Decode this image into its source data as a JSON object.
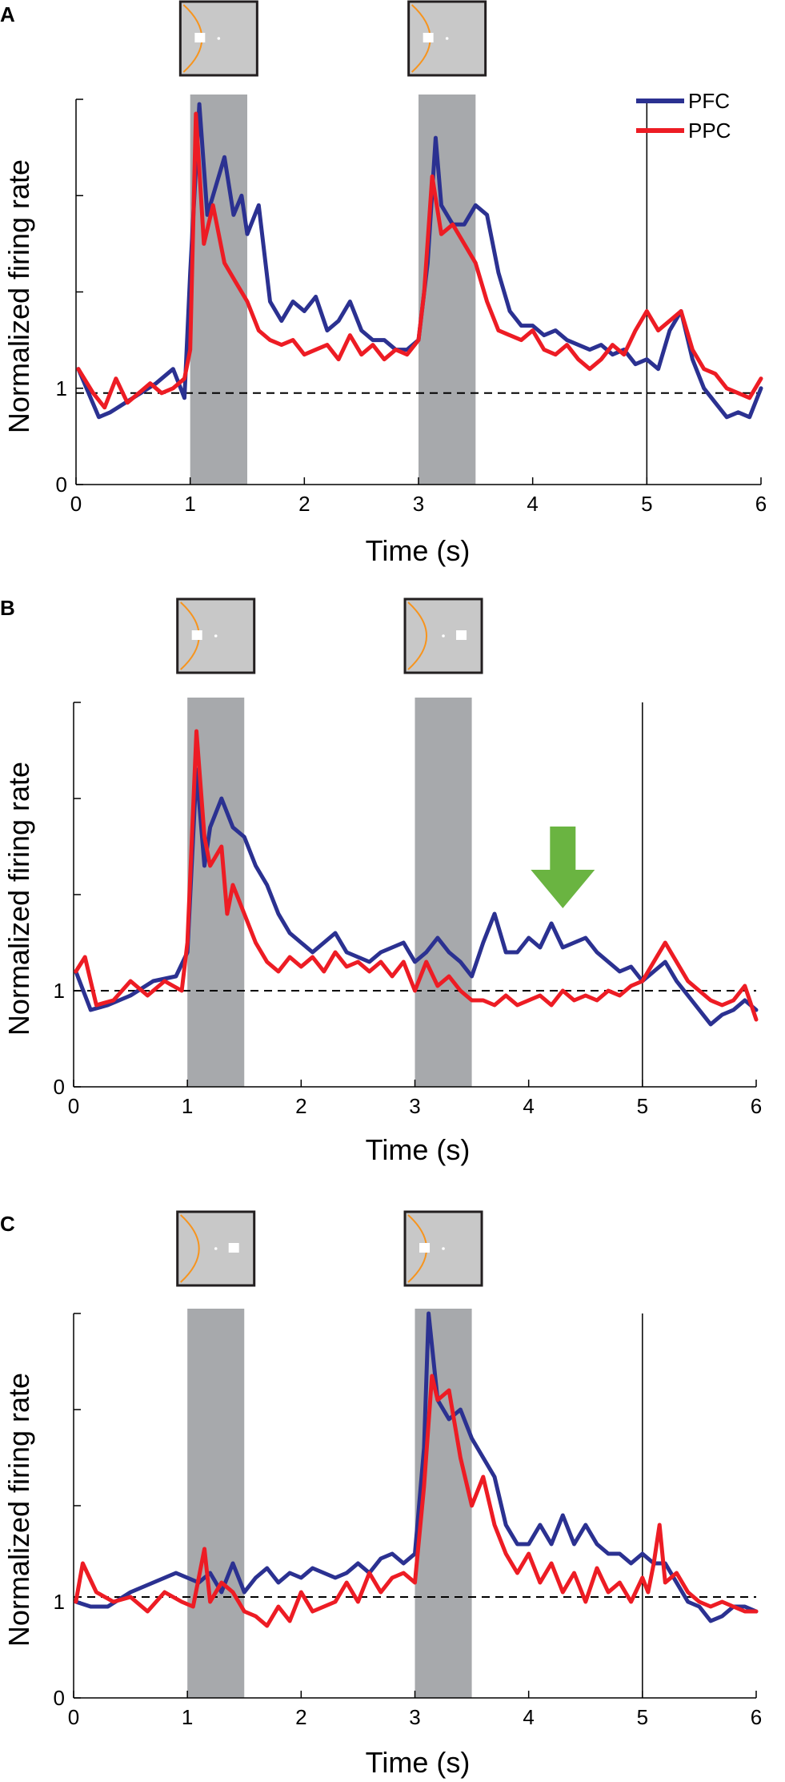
{
  "chart_data": [
    {
      "panel": "A",
      "type": "line",
      "xlabel": "Time (s)",
      "ylabel": "Normalized firing rate",
      "xlim": [
        0,
        6
      ],
      "ylim": [
        0,
        4
      ],
      "xticks": [
        "0",
        "1",
        "2",
        "3",
        "4",
        "5",
        "6"
      ],
      "yticks": [
        {
          "value": 0,
          "label": "0"
        },
        {
          "value": 1,
          "label": "1"
        },
        {
          "value": 2,
          "label": ""
        },
        {
          "value": 3,
          "label": ""
        },
        {
          "value": 4,
          "label": ""
        }
      ],
      "baseline": 0.95,
      "shaded_intervals": [
        [
          1.0,
          1.5
        ],
        [
          3.0,
          3.5
        ]
      ],
      "vertical_line": 5.0,
      "legend": {
        "position": "top-right",
        "entries": [
          "PFC",
          "PPC"
        ]
      },
      "stimulus_icons": [
        {
          "time": 1.25,
          "square_side": "left"
        },
        {
          "time": 3.25,
          "square_side": "left"
        }
      ],
      "series": [
        {
          "name": "PFC",
          "color": "#2b3191",
          "x": [
            0.02,
            0.2,
            0.3,
            0.5,
            0.7,
            0.85,
            0.95,
            1.0,
            1.08,
            1.15,
            1.2,
            1.3,
            1.38,
            1.45,
            1.5,
            1.6,
            1.7,
            1.8,
            1.9,
            2.0,
            2.1,
            2.2,
            2.3,
            2.4,
            2.5,
            2.6,
            2.7,
            2.8,
            2.9,
            3.0,
            3.08,
            3.15,
            3.2,
            3.3,
            3.4,
            3.5,
            3.6,
            3.7,
            3.8,
            3.9,
            4.0,
            4.1,
            4.2,
            4.3,
            4.4,
            4.5,
            4.6,
            4.7,
            4.8,
            4.9,
            5.0,
            5.1,
            5.2,
            5.3,
            5.4,
            5.5,
            5.6,
            5.7,
            5.8,
            5.9,
            6.0
          ],
          "y": [
            1.2,
            0.7,
            0.75,
            0.9,
            1.05,
            1.2,
            0.9,
            2.2,
            3.95,
            2.8,
            3.0,
            3.4,
            2.8,
            3.0,
            2.6,
            2.9,
            1.9,
            1.7,
            1.9,
            1.8,
            1.95,
            1.6,
            1.7,
            1.9,
            1.6,
            1.5,
            1.5,
            1.4,
            1.4,
            1.5,
            2.3,
            3.6,
            2.9,
            2.7,
            2.7,
            2.9,
            2.8,
            2.2,
            1.8,
            1.65,
            1.65,
            1.55,
            1.6,
            1.5,
            1.45,
            1.4,
            1.45,
            1.35,
            1.4,
            1.25,
            1.3,
            1.2,
            1.6,
            1.8,
            1.3,
            1.0,
            0.85,
            0.7,
            0.75,
            0.7,
            1.0
          ]
        },
        {
          "name": "PPC",
          "color": "#ed1c24",
          "x": [
            0.02,
            0.15,
            0.25,
            0.35,
            0.45,
            0.55,
            0.65,
            0.75,
            0.85,
            0.95,
            1.0,
            1.05,
            1.12,
            1.2,
            1.3,
            1.4,
            1.5,
            1.6,
            1.7,
            1.8,
            1.9,
            2.0,
            2.1,
            2.2,
            2.3,
            2.4,
            2.5,
            2.6,
            2.7,
            2.8,
            2.9,
            3.0,
            3.05,
            3.12,
            3.2,
            3.3,
            3.4,
            3.5,
            3.6,
            3.7,
            3.8,
            3.9,
            4.0,
            4.1,
            4.2,
            4.3,
            4.4,
            4.5,
            4.6,
            4.7,
            4.8,
            4.9,
            5.0,
            5.1,
            5.2,
            5.3,
            5.4,
            5.5,
            5.6,
            5.7,
            5.8,
            5.9,
            6.0
          ],
          "y": [
            1.2,
            0.95,
            0.8,
            1.1,
            0.85,
            0.95,
            1.05,
            0.95,
            1.0,
            1.1,
            1.4,
            3.85,
            2.5,
            2.9,
            2.3,
            2.1,
            1.9,
            1.6,
            1.5,
            1.45,
            1.5,
            1.35,
            1.4,
            1.45,
            1.3,
            1.55,
            1.35,
            1.45,
            1.3,
            1.4,
            1.35,
            1.5,
            2.0,
            3.2,
            2.6,
            2.7,
            2.5,
            2.3,
            1.9,
            1.6,
            1.55,
            1.5,
            1.6,
            1.4,
            1.35,
            1.45,
            1.3,
            1.2,
            1.3,
            1.45,
            1.35,
            1.6,
            1.8,
            1.6,
            1.7,
            1.8,
            1.4,
            1.2,
            1.15,
            1.0,
            0.95,
            0.9,
            1.1
          ]
        }
      ]
    },
    {
      "panel": "B",
      "type": "line",
      "xlabel": "Time (s)",
      "ylabel": "Normalized firing rate",
      "xlim": [
        0,
        6
      ],
      "ylim": [
        0,
        4
      ],
      "xticks": [
        "0",
        "1",
        "2",
        "3",
        "4",
        "5",
        "6"
      ],
      "yticks": [
        {
          "value": 0,
          "label": "0"
        },
        {
          "value": 1,
          "label": "1"
        },
        {
          "value": 2,
          "label": ""
        },
        {
          "value": 3,
          "label": ""
        },
        {
          "value": 4,
          "label": ""
        }
      ],
      "baseline": 1.0,
      "shaded_intervals": [
        [
          1.0,
          1.5
        ],
        [
          3.0,
          3.5
        ]
      ],
      "vertical_line": 5.0,
      "arrow_marker": {
        "time": 4.3,
        "color": "#6ab441"
      },
      "stimulus_icons": [
        {
          "time": 1.25,
          "square_side": "left"
        },
        {
          "time": 3.25,
          "square_side": "right"
        }
      ],
      "series": [
        {
          "name": "PFC",
          "color": "#2b3191",
          "x": [
            0.02,
            0.15,
            0.3,
            0.5,
            0.7,
            0.9,
            1.0,
            1.08,
            1.15,
            1.2,
            1.3,
            1.4,
            1.5,
            1.6,
            1.7,
            1.8,
            1.9,
            2.0,
            2.1,
            2.2,
            2.3,
            2.4,
            2.5,
            2.6,
            2.7,
            2.8,
            2.9,
            3.0,
            3.1,
            3.2,
            3.3,
            3.4,
            3.5,
            3.6,
            3.7,
            3.8,
            3.9,
            4.0,
            4.1,
            4.2,
            4.3,
            4.4,
            4.5,
            4.6,
            4.7,
            4.8,
            4.9,
            5.0,
            5.1,
            5.2,
            5.3,
            5.4,
            5.5,
            5.6,
            5.7,
            5.8,
            5.9,
            6.0
          ],
          "y": [
            1.2,
            0.8,
            0.85,
            0.95,
            1.1,
            1.15,
            1.4,
            3.3,
            2.3,
            2.7,
            3.0,
            2.7,
            2.6,
            2.3,
            2.1,
            1.8,
            1.6,
            1.5,
            1.4,
            1.5,
            1.6,
            1.4,
            1.35,
            1.3,
            1.4,
            1.45,
            1.5,
            1.3,
            1.4,
            1.55,
            1.4,
            1.3,
            1.15,
            1.5,
            1.8,
            1.4,
            1.4,
            1.55,
            1.45,
            1.7,
            1.45,
            1.5,
            1.55,
            1.4,
            1.3,
            1.2,
            1.25,
            1.1,
            1.2,
            1.3,
            1.1,
            0.95,
            0.8,
            0.65,
            0.75,
            0.8,
            0.9,
            0.8
          ]
        },
        {
          "name": "PPC",
          "color": "#ed1c24",
          "x": [
            0.02,
            0.1,
            0.2,
            0.35,
            0.5,
            0.65,
            0.8,
            0.95,
            1.0,
            1.08,
            1.15,
            1.2,
            1.3,
            1.35,
            1.4,
            1.5,
            1.6,
            1.7,
            1.8,
            1.9,
            2.0,
            2.1,
            2.2,
            2.3,
            2.4,
            2.5,
            2.6,
            2.7,
            2.8,
            2.9,
            3.0,
            3.1,
            3.2,
            3.3,
            3.4,
            3.5,
            3.6,
            3.7,
            3.8,
            3.9,
            4.0,
            4.1,
            4.2,
            4.3,
            4.4,
            4.5,
            4.6,
            4.7,
            4.8,
            4.9,
            5.0,
            5.1,
            5.2,
            5.3,
            5.4,
            5.5,
            5.6,
            5.7,
            5.8,
            5.9,
            6.0
          ],
          "y": [
            1.2,
            1.35,
            0.85,
            0.9,
            1.1,
            0.95,
            1.1,
            1.0,
            1.5,
            3.7,
            2.6,
            2.3,
            2.5,
            1.8,
            2.1,
            1.8,
            1.5,
            1.3,
            1.2,
            1.35,
            1.25,
            1.35,
            1.2,
            1.4,
            1.25,
            1.3,
            1.2,
            1.3,
            1.15,
            1.3,
            1.0,
            1.3,
            1.05,
            1.15,
            1.0,
            0.9,
            0.9,
            0.85,
            0.95,
            0.85,
            0.9,
            0.95,
            0.85,
            1.0,
            0.9,
            0.95,
            0.9,
            1.0,
            0.95,
            1.05,
            1.1,
            1.3,
            1.5,
            1.3,
            1.1,
            1.0,
            0.9,
            0.85,
            0.9,
            1.05,
            0.7
          ]
        }
      ]
    },
    {
      "panel": "C",
      "type": "line",
      "xlabel": "Time (s)",
      "ylabel": "Normalized firing rate",
      "xlim": [
        0,
        6
      ],
      "ylim": [
        0,
        4
      ],
      "xticks": [
        "0",
        "1",
        "2",
        "3",
        "4",
        "5",
        "6"
      ],
      "yticks": [
        {
          "value": 0,
          "label": "0"
        },
        {
          "value": 1,
          "label": "1"
        },
        {
          "value": 2,
          "label": ""
        },
        {
          "value": 3,
          "label": ""
        },
        {
          "value": 4,
          "label": ""
        }
      ],
      "baseline": 1.05,
      "shaded_intervals": [
        [
          1.0,
          1.5
        ],
        [
          3.0,
          3.5
        ]
      ],
      "vertical_line": 5.0,
      "stimulus_icons": [
        {
          "time": 1.25,
          "square_side": "right"
        },
        {
          "time": 3.25,
          "square_side": "left"
        }
      ],
      "series": [
        {
          "name": "PFC",
          "color": "#2b3191",
          "x": [
            0.02,
            0.15,
            0.3,
            0.5,
            0.7,
            0.9,
            1.0,
            1.1,
            1.2,
            1.3,
            1.4,
            1.5,
            1.6,
            1.7,
            1.8,
            1.9,
            2.0,
            2.1,
            2.2,
            2.3,
            2.4,
            2.5,
            2.6,
            2.7,
            2.8,
            2.9,
            3.0,
            3.08,
            3.12,
            3.2,
            3.3,
            3.4,
            3.5,
            3.6,
            3.7,
            3.8,
            3.9,
            4.0,
            4.1,
            4.2,
            4.3,
            4.4,
            4.5,
            4.6,
            4.7,
            4.8,
            4.9,
            5.0,
            5.1,
            5.2,
            5.3,
            5.4,
            5.5,
            5.6,
            5.7,
            5.8,
            5.9,
            6.0
          ],
          "y": [
            1.0,
            0.95,
            0.95,
            1.1,
            1.2,
            1.3,
            1.25,
            1.2,
            1.3,
            1.1,
            1.4,
            1.1,
            1.25,
            1.35,
            1.2,
            1.3,
            1.25,
            1.35,
            1.3,
            1.25,
            1.3,
            1.4,
            1.3,
            1.45,
            1.5,
            1.4,
            1.5,
            2.6,
            4.0,
            3.1,
            2.9,
            3.0,
            2.7,
            2.5,
            2.3,
            1.8,
            1.6,
            1.6,
            1.8,
            1.6,
            1.9,
            1.6,
            1.8,
            1.6,
            1.5,
            1.5,
            1.4,
            1.5,
            1.4,
            1.4,
            1.2,
            1.0,
            0.95,
            0.8,
            0.85,
            0.95,
            0.95,
            0.9
          ]
        },
        {
          "name": "PPC",
          "color": "#ed1c24",
          "x": [
            0.02,
            0.08,
            0.2,
            0.35,
            0.5,
            0.65,
            0.8,
            0.95,
            1.05,
            1.15,
            1.2,
            1.3,
            1.4,
            1.5,
            1.6,
            1.7,
            1.8,
            1.9,
            2.0,
            2.1,
            2.2,
            2.3,
            2.4,
            2.5,
            2.6,
            2.7,
            2.8,
            2.9,
            3.0,
            3.08,
            3.15,
            3.2,
            3.3,
            3.4,
            3.5,
            3.6,
            3.7,
            3.8,
            3.9,
            4.0,
            4.1,
            4.2,
            4.3,
            4.4,
            4.5,
            4.6,
            4.7,
            4.8,
            4.9,
            5.0,
            5.05,
            5.1,
            5.15,
            5.2,
            5.3,
            5.4,
            5.5,
            5.6,
            5.7,
            5.8,
            5.9,
            6.0
          ],
          "y": [
            1.0,
            1.4,
            1.1,
            1.0,
            1.05,
            0.9,
            1.1,
            1.0,
            0.95,
            1.55,
            1.0,
            1.2,
            1.1,
            0.9,
            0.85,
            0.75,
            0.95,
            0.8,
            1.1,
            0.9,
            0.95,
            1.0,
            1.2,
            1.0,
            1.3,
            1.1,
            1.25,
            1.3,
            1.2,
            2.2,
            3.35,
            3.1,
            3.2,
            2.5,
            2.0,
            2.3,
            1.8,
            1.5,
            1.3,
            1.5,
            1.2,
            1.4,
            1.1,
            1.3,
            1.0,
            1.35,
            1.1,
            1.2,
            1.0,
            1.25,
            1.1,
            1.4,
            1.8,
            1.2,
            1.3,
            1.1,
            1.0,
            0.95,
            1.0,
            0.95,
            0.9,
            0.9
          ]
        }
      ]
    }
  ]
}
